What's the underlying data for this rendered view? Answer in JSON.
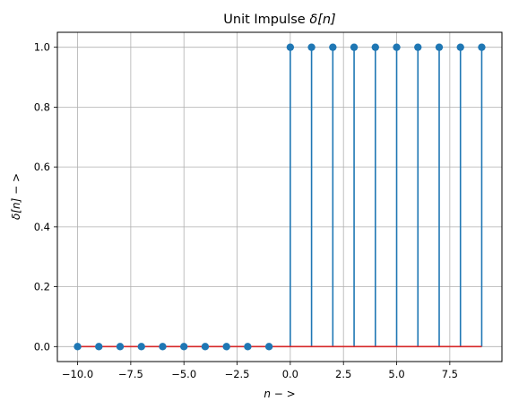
{
  "chart_data": {
    "type": "stem",
    "title_main": "Unit Impulse ",
    "title_math": "δ[n]",
    "xlabel": "n − >",
    "ylabel": "δ[n] − >",
    "xlim": [
      -10.95,
      9.95
    ],
    "ylim": [
      -0.05,
      1.05
    ],
    "x_ticks": [
      -10.0,
      -7.5,
      -5.0,
      -2.5,
      0.0,
      2.5,
      5.0,
      7.5
    ],
    "x_tick_labels": [
      "−10.0",
      "−7.5",
      "−5.0",
      "−2.5",
      "0.0",
      "2.5",
      "5.0",
      "7.5"
    ],
    "y_ticks": [
      0.0,
      0.2,
      0.4,
      0.6,
      0.8,
      1.0
    ],
    "y_tick_labels": [
      "0.0",
      "0.2",
      "0.4",
      "0.6",
      "0.8",
      "1.0"
    ],
    "grid": true,
    "series": [
      {
        "x": [
          -10,
          -9,
          -8,
          -7,
          -6,
          -5,
          -4,
          -3,
          -2,
          -1,
          0,
          1,
          2,
          3,
          4,
          5,
          6,
          7,
          8,
          9
        ],
        "values": [
          0,
          0,
          0,
          0,
          0,
          0,
          0,
          0,
          0,
          0,
          1,
          1,
          1,
          1,
          1,
          1,
          1,
          1,
          1,
          1
        ],
        "color": "#1f77b4"
      }
    ],
    "baseline_color": "#d62728",
    "grid_color": "#b0b0b0"
  }
}
